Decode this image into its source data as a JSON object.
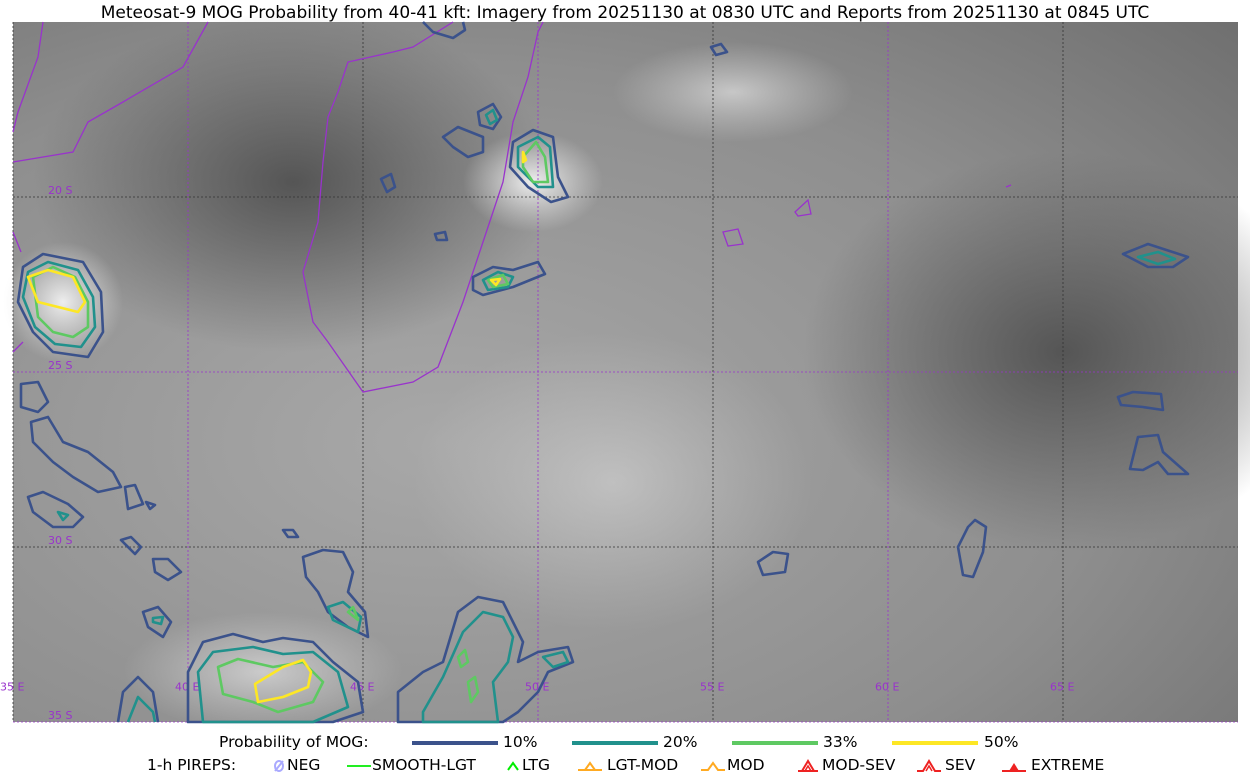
{
  "title": "Meteosat-9 MOG Probability from 40-41 kft: Imagery from 20251130 at 0830 UTC and Reports from 20251130 at 0845 UTC",
  "map": {
    "extent": {
      "lon": [
        35,
        70
      ],
      "lat": [
        -35,
        -15
      ]
    },
    "grid_color": "#9933cc",
    "coastline_color": "#9933cc",
    "lon_labels": [
      "35 E",
      "40 E",
      "45 E",
      "50 E",
      "55 E",
      "60 E",
      "65 E"
    ],
    "lat_labels": [
      "20 S",
      "25 S",
      "30 S",
      "35 S"
    ]
  },
  "legend": {
    "probability_label": "Probability of MOG:",
    "levels": [
      {
        "label": "10%",
        "color": "#3b528b"
      },
      {
        "label": "20%",
        "color": "#21918c"
      },
      {
        "label": "33%",
        "color": "#5ec962"
      },
      {
        "label": "50%",
        "color": "#fde725"
      }
    ],
    "pireps_label": "1-h PIREPS:",
    "pireps": [
      {
        "label": "NEG",
        "icon": "neg-icon",
        "color": "#aaaaff"
      },
      {
        "label": "SMOOTH-LGT",
        "icon": "line-icon",
        "color": "#22ee22"
      },
      {
        "label": "LTG",
        "icon": "caret-icon",
        "color": "#00ee00"
      },
      {
        "label": "LGT-MOD",
        "icon": "triangle-caret-icon",
        "color": "#ffaa22"
      },
      {
        "label": "MOD",
        "icon": "caret-icon",
        "color": "#ffaa22"
      },
      {
        "label": "MOD-SEV",
        "icon": "double-caret-icon",
        "color": "#ee2222"
      },
      {
        "label": "SEV",
        "icon": "double-caret-icon",
        "color": "#ee2222"
      },
      {
        "label": "EXTREME",
        "icon": "filled-triangle-icon",
        "color": "#ee2222"
      }
    ]
  }
}
